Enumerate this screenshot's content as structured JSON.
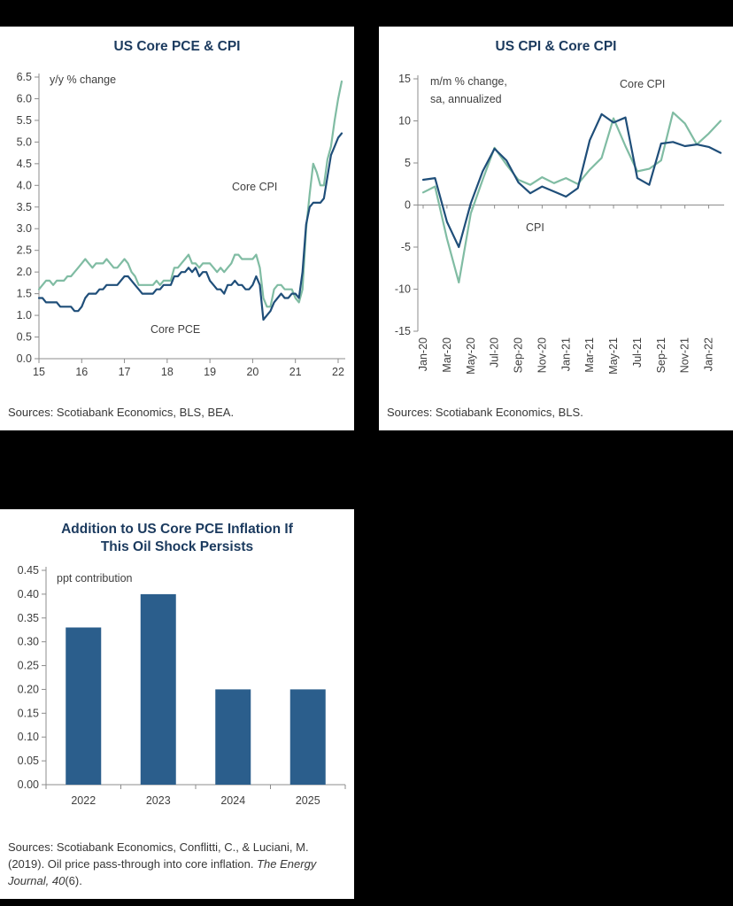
{
  "colors": {
    "navy": "#1f4e79",
    "green": "#80bca3",
    "bar": "#2b5e8c",
    "axis": "#8c8c8c",
    "title": "#1b3a5e",
    "background": "#000000",
    "panel": "#ffffff"
  },
  "chart_data": [
    {
      "type": "line",
      "title": "US Core PCE & CPI",
      "note": "y/y % change",
      "x_tick_labels": [
        "15",
        "16",
        "17",
        "18",
        "19",
        "20",
        "21",
        "22"
      ],
      "x_points_per_tick": 12,
      "ylim": [
        0,
        6.5
      ],
      "ytick_step": 0.5,
      "ytick_decimals": 1,
      "grid": false,
      "legend": "inline-annotations",
      "series": [
        {
          "name": "Core CPI",
          "color": "#80bca3",
          "values": [
            1.6,
            1.7,
            1.8,
            1.8,
            1.7,
            1.8,
            1.8,
            1.8,
            1.9,
            1.9,
            2.0,
            2.1,
            2.2,
            2.3,
            2.2,
            2.1,
            2.2,
            2.2,
            2.2,
            2.3,
            2.2,
            2.1,
            2.1,
            2.2,
            2.3,
            2.2,
            2.0,
            1.9,
            1.7,
            1.7,
            1.7,
            1.7,
            1.7,
            1.8,
            1.7,
            1.8,
            1.8,
            1.8,
            2.1,
            2.1,
            2.2,
            2.3,
            2.4,
            2.2,
            2.2,
            2.1,
            2.2,
            2.2,
            2.2,
            2.1,
            2.0,
            2.1,
            2.0,
            2.1,
            2.2,
            2.4,
            2.4,
            2.3,
            2.3,
            2.3,
            2.3,
            2.4,
            2.1,
            1.4,
            1.2,
            1.2,
            1.6,
            1.7,
            1.7,
            1.6,
            1.6,
            1.6,
            1.4,
            1.3,
            1.6,
            3.0,
            3.8,
            4.5,
            4.3,
            4.0,
            4.0,
            4.6,
            4.9,
            5.5,
            6.0,
            6.4
          ]
        },
        {
          "name": "Core PCE",
          "color": "#1f4e79",
          "values": [
            1.4,
            1.4,
            1.3,
            1.3,
            1.3,
            1.3,
            1.2,
            1.2,
            1.2,
            1.2,
            1.1,
            1.1,
            1.2,
            1.4,
            1.5,
            1.5,
            1.5,
            1.6,
            1.6,
            1.7,
            1.7,
            1.7,
            1.7,
            1.8,
            1.9,
            1.9,
            1.8,
            1.7,
            1.6,
            1.5,
            1.5,
            1.5,
            1.5,
            1.6,
            1.6,
            1.7,
            1.7,
            1.7,
            1.9,
            1.9,
            2.0,
            2.0,
            2.1,
            2.0,
            2.1,
            1.9,
            2.0,
            2.0,
            1.8,
            1.7,
            1.6,
            1.6,
            1.5,
            1.7,
            1.7,
            1.8,
            1.7,
            1.7,
            1.6,
            1.6,
            1.7,
            1.9,
            1.7,
            0.9,
            1.0,
            1.1,
            1.3,
            1.4,
            1.5,
            1.4,
            1.4,
            1.5,
            1.5,
            1.4,
            2.0,
            3.1,
            3.5,
            3.6,
            3.6,
            3.6,
            3.7,
            4.2,
            4.7,
            4.9,
            5.1,
            5.2
          ]
        }
      ],
      "source": "Sources: Scotiabank Economics, BLS, BEA."
    },
    {
      "type": "line",
      "title": "US CPI & Core CPI",
      "note_lines": [
        "m/m % change,",
        "sa, annualized"
      ],
      "x": [
        "Jan-20",
        "Feb-20",
        "Mar-20",
        "Apr-20",
        "May-20",
        "Jun-20",
        "Jul-20",
        "Aug-20",
        "Sep-20",
        "Oct-20",
        "Nov-20",
        "Dec-20",
        "Jan-21",
        "Feb-21",
        "Mar-21",
        "Apr-21",
        "May-21",
        "Jun-21",
        "Jul-21",
        "Aug-21",
        "Sep-21",
        "Oct-21",
        "Nov-21",
        "Dec-21",
        "Jan-22",
        "Feb-22"
      ],
      "x_tick_every": 2,
      "ylim": [
        -15,
        15
      ],
      "ytick_step": 5,
      "ytick_decimals": 0,
      "grid": false,
      "legend": "inline-annotations",
      "series": [
        {
          "name": "Core CPI",
          "color": "#80bca3",
          "values": [
            1.5,
            2.2,
            -4.0,
            -9.2,
            -1.0,
            3.0,
            6.8,
            4.8,
            3.0,
            2.4,
            3.3,
            2.6,
            3.2,
            2.5,
            4.2,
            5.6,
            10.3,
            7.0,
            4.0,
            4.3,
            5.3,
            11.0,
            9.7,
            7.2,
            8.5,
            10.0
          ]
        },
        {
          "name": "CPI",
          "color": "#1f4e79",
          "values": [
            3.0,
            3.2,
            -2.0,
            -5.0,
            0.2,
            4.0,
            6.7,
            5.3,
            2.7,
            1.4,
            2.2,
            1.6,
            1.0,
            2.0,
            7.7,
            10.8,
            9.8,
            10.4,
            3.2,
            2.4,
            7.3,
            7.5,
            7.0,
            7.2,
            6.9,
            6.2
          ]
        }
      ],
      "source": "Sources: Scotiabank Economics, BLS."
    },
    {
      "type": "bar",
      "title": "Addition to US Core PCE Inflation If This Oil Shock Persists",
      "title_lines": [
        "Addition to US Core PCE Inflation If",
        "This Oil Shock Persists"
      ],
      "note": "ppt contribution",
      "categories": [
        "2022",
        "2023",
        "2024",
        "2025"
      ],
      "values": [
        0.33,
        0.4,
        0.2,
        0.2
      ],
      "ylim": [
        0,
        0.45
      ],
      "ytick_step": 0.05,
      "ytick_decimals": 2,
      "grid": false,
      "source_prefix": "Sources: Scotiabank Economics, Conflitti, C., & Luciani, M. (2019). Oil price pass-through into core inflation. ",
      "source_italic": "The Energy Journal, 40",
      "source_suffix": "(6)."
    }
  ]
}
